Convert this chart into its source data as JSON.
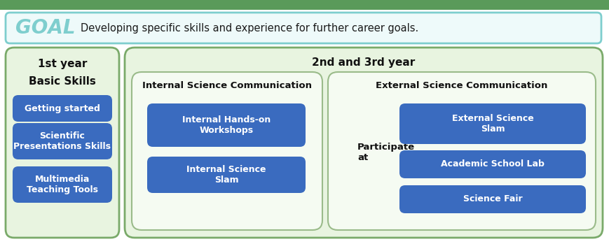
{
  "fig_width": 8.7,
  "fig_height": 3.49,
  "dpi": 100,
  "top_bar_color": "#5a9a5a",
  "background_color": "#ffffff",
  "goal_box": {
    "text_goal": "GOAL",
    "text_desc": "Developing specific skills and experience for further career goals.",
    "border_color": "#7ecece",
    "fill_color": "#eefafa",
    "goal_color": "#7ecece"
  },
  "year1_box": {
    "fill_color": "#e8f4e0",
    "border_color": "#7aaa6a",
    "title": "1st year",
    "subtitle": "Basic Skills"
  },
  "year2_box": {
    "fill_color": "#e8f4e0",
    "border_color": "#7aaa6a",
    "title": "2nd and 3rd year"
  },
  "internal_box": {
    "fill_color": "#f5fbf2",
    "border_color": "#9abb8a",
    "title": "Internal Science Communication"
  },
  "external_box": {
    "fill_color": "#f5fbf2",
    "border_color": "#9abb8a",
    "title": "External Science Communication"
  },
  "blue_button_color": "#3a6bbf",
  "blue_button_text_color": "#ffffff",
  "buttons_year1": [
    "Getting started",
    "Scientific\nPresentations Skills",
    "Multimedia\nTeaching Tools"
  ],
  "buttons_internal": [
    "Internal Hands-on\nWorkshops",
    "Internal Science\nSlam"
  ],
  "buttons_external": [
    "External Science\nSlam",
    "Academic School Lab",
    "Science Fair"
  ],
  "participate_text": "Participate\nat"
}
